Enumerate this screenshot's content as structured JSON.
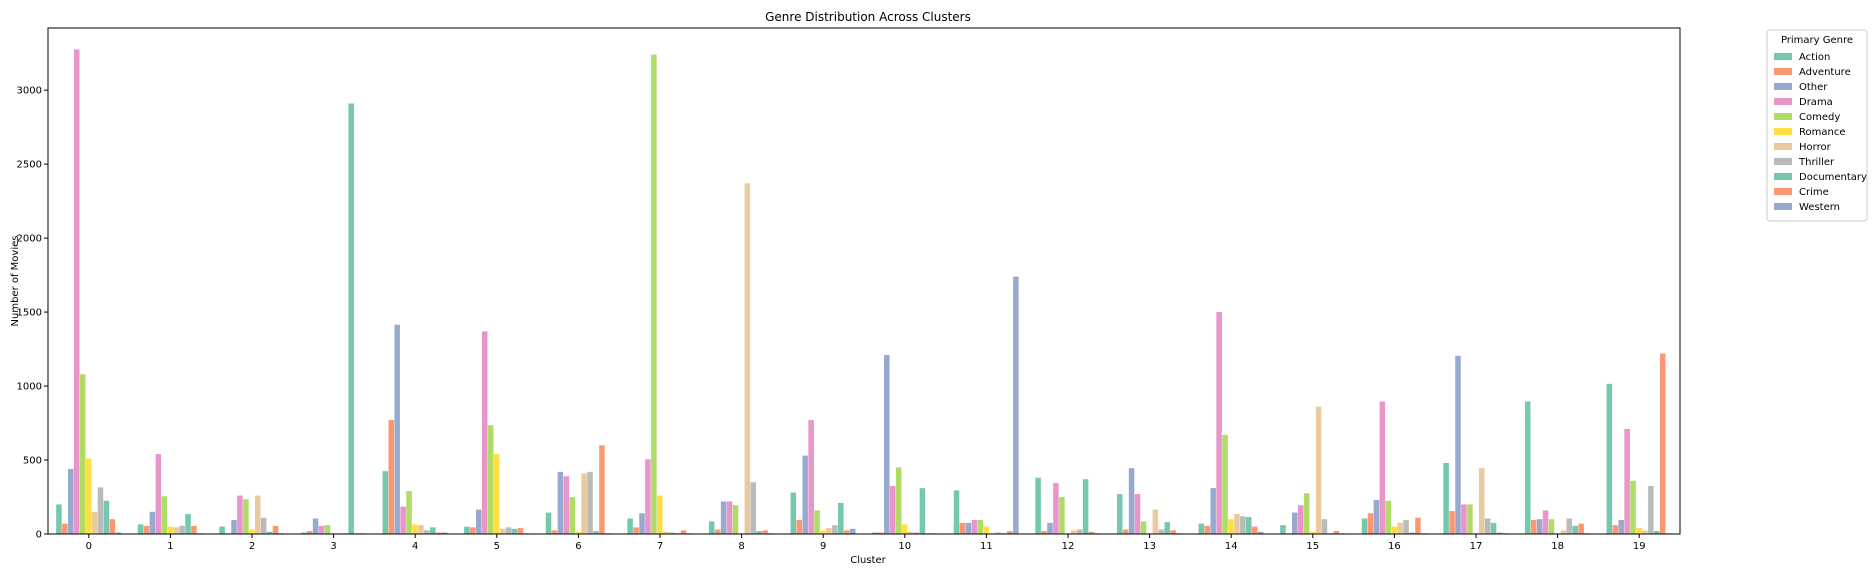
{
  "chart_data": {
    "type": "bar",
    "title": "Genre Distribution Across Clusters",
    "xlabel": "Cluster",
    "ylabel": "Number of Movies",
    "ylim": [
      0,
      3420
    ],
    "yticks": [
      0,
      500,
      1000,
      1500,
      2000,
      2500,
      3000
    ],
    "grid": false,
    "legend": {
      "title": "Primary Genre",
      "placement": "outside-top-right"
    },
    "categories": [
      "0",
      "1",
      "2",
      "3",
      "4",
      "5",
      "6",
      "7",
      "8",
      "9",
      "10",
      "11",
      "12",
      "13",
      "14",
      "15",
      "16",
      "17",
      "18",
      "19"
    ],
    "series": [
      {
        "name": "Action",
        "color": "#66c2a5",
        "values": [
          200,
          65,
          50,
          10,
          425,
          50,
          145,
          105,
          85,
          280,
          10,
          295,
          380,
          270,
          70,
          60,
          105,
          480,
          895,
          1015
        ]
      },
      {
        "name": "Adventure",
        "color": "#fc8d62",
        "values": [
          70,
          55,
          5,
          20,
          770,
          45,
          25,
          45,
          30,
          95,
          10,
          75,
          20,
          30,
          55,
          5,
          140,
          155,
          95,
          60
        ]
      },
      {
        "name": "Other",
        "color": "#8da0cb",
        "values": [
          440,
          150,
          95,
          105,
          1415,
          165,
          420,
          140,
          220,
          530,
          1210,
          75,
          75,
          445,
          310,
          145,
          230,
          1205,
          100,
          95
        ]
      },
      {
        "name": "Drama",
        "color": "#e78ac3",
        "values": [
          3275,
          540,
          260,
          55,
          185,
          1370,
          390,
          505,
          220,
          770,
          325,
          95,
          345,
          270,
          1500,
          195,
          895,
          200,
          160,
          710
        ]
      },
      {
        "name": "Comedy",
        "color": "#a6d854",
        "values": [
          1080,
          255,
          235,
          60,
          290,
          735,
          250,
          3240,
          195,
          160,
          450,
          95,
          250,
          85,
          670,
          275,
          225,
          200,
          100,
          360
        ]
      },
      {
        "name": "Romance",
        "color": "#ffd92f",
        "values": [
          510,
          50,
          30,
          5,
          65,
          540,
          15,
          260,
          5,
          25,
          65,
          50,
          5,
          5,
          100,
          15,
          50,
          5,
          5,
          40
        ]
      },
      {
        "name": "Horror",
        "color": "#e5c494",
        "values": [
          150,
          45,
          260,
          5,
          60,
          35,
          410,
          15,
          2370,
          40,
          15,
          5,
          25,
          165,
          135,
          860,
          75,
          445,
          25,
          25
        ]
      },
      {
        "name": "Thriller",
        "color": "#b3b3b3",
        "values": [
          315,
          55,
          110,
          5,
          25,
          45,
          420,
          10,
          350,
          60,
          10,
          10,
          30,
          30,
          120,
          100,
          95,
          105,
          105,
          325
        ]
      },
      {
        "name": "Documentary",
        "color": "#66c2a5",
        "values": [
          225,
          135,
          15,
          2910,
          45,
          35,
          20,
          5,
          20,
          210,
          310,
          5,
          370,
          80,
          115,
          5,
          10,
          75,
          55,
          20
        ]
      },
      {
        "name": "Crime",
        "color": "#fc8d62",
        "values": [
          100,
          55,
          55,
          5,
          10,
          40,
          600,
          25,
          25,
          25,
          5,
          20,
          15,
          25,
          50,
          20,
          110,
          10,
          70,
          1220
        ]
      },
      {
        "name": "Western",
        "color": "#8da0cb",
        "values": [
          10,
          5,
          5,
          5,
          10,
          5,
          5,
          5,
          5,
          35,
          5,
          1740,
          5,
          5,
          15,
          5,
          5,
          5,
          5,
          5
        ]
      }
    ]
  }
}
